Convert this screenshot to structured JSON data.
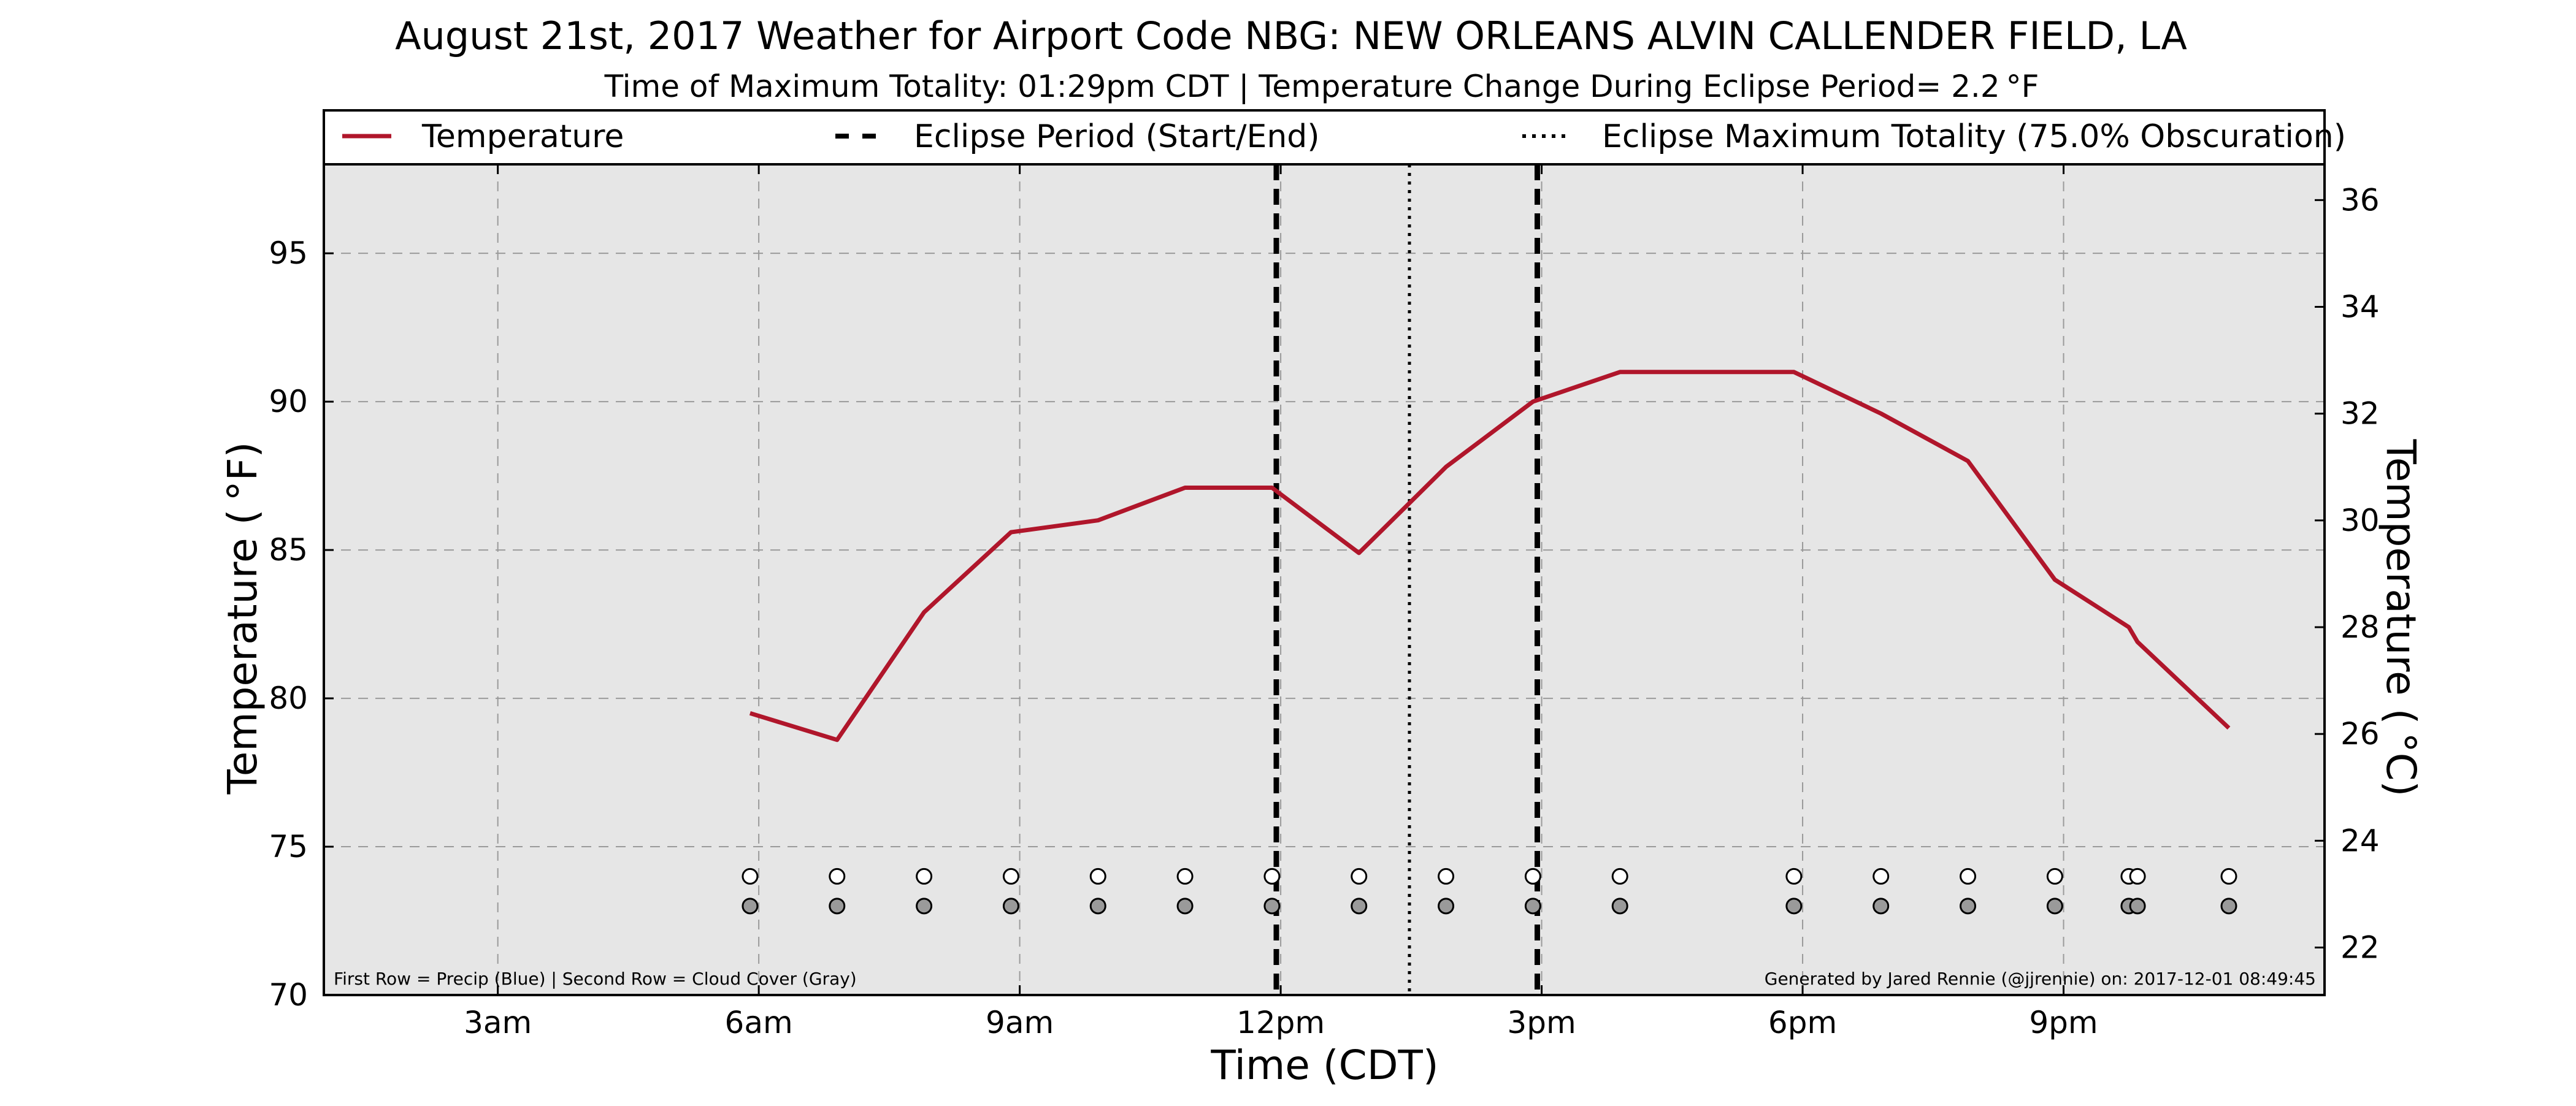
{
  "chart_data": {
    "type": "line",
    "title": "August 21st, 2017 Weather for Airport Code NBG: NEW ORLEANS ALVIN CALLENDER FIELD, LA",
    "subtitle": "Time of Maximum Totality: 01:29pm CDT | Temperature Change During Eclipse Period= 2.2 °F",
    "xlabel": "Time (CDT)",
    "ylabel": "Temperature ( °F)",
    "ylabel_right": "Temperature ( °C)",
    "x_units": "hours (CDT)",
    "xlim": [
      1,
      24
    ],
    "ylim": [
      70,
      98
    ],
    "ylim_right": [
      21.11,
      36.67
    ],
    "x_ticks": [
      {
        "x": 3,
        "label": "3am"
      },
      {
        "x": 6,
        "label": "6am"
      },
      {
        "x": 9,
        "label": "9am"
      },
      {
        "x": 12,
        "label": "12pm"
      },
      {
        "x": 15,
        "label": "3pm"
      },
      {
        "x": 18,
        "label": "6pm"
      },
      {
        "x": 21,
        "label": "9pm"
      }
    ],
    "y_ticks": [
      70,
      75,
      80,
      85,
      90,
      95
    ],
    "y_ticks_right": [
      22,
      24,
      26,
      28,
      30,
      32,
      34,
      36
    ],
    "grid": true,
    "legend_placement": "top",
    "series": [
      {
        "name": "Temperature",
        "color": "#b0162b",
        "x": [
          5.9,
          6.9,
          7.9,
          8.9,
          9.9,
          10.9,
          11.9,
          12.9,
          13.9,
          14.9,
          15.9,
          17.9,
          18.9,
          19.9,
          20.9,
          21.75,
          21.85,
          22.9
        ],
        "y": [
          79.5,
          78.6,
          82.9,
          85.6,
          86.0,
          87.1,
          87.1,
          84.9,
          87.8,
          90.0,
          91.0,
          91.0,
          89.6,
          88.0,
          84.0,
          82.4,
          81.9,
          79.0
        ]
      }
    ],
    "eclipse": {
      "start_label": "Eclipse Period (Start/End)",
      "start": 11.95,
      "end": 14.95,
      "max_label": "Eclipse Maximum Totality (75.0% Obscuration)",
      "max": 13.48
    },
    "precip_markers": {
      "y": 74.0,
      "color": "#ffffff",
      "x": [
        5.9,
        6.9,
        7.9,
        8.9,
        9.9,
        10.9,
        11.9,
        12.9,
        13.9,
        14.9,
        15.9,
        17.9,
        18.9,
        19.9,
        20.9,
        21.75,
        21.85,
        22.9
      ]
    },
    "cloud_markers": {
      "y": 73.0,
      "color": "#9a9a9a",
      "x": [
        5.9,
        6.9,
        7.9,
        8.9,
        9.9,
        10.9,
        11.9,
        12.9,
        13.9,
        14.9,
        15.9,
        17.9,
        18.9,
        19.9,
        20.9,
        21.75,
        21.85,
        22.9
      ]
    },
    "note_left": "First Row = Precip (Blue) | Second Row = Cloud Cover (Gray)",
    "note_right": "Generated by Jared Rennie (@jjrennie) on: 2017-12-01 08:49:45",
    "plot_background": "#e6e6e6"
  }
}
